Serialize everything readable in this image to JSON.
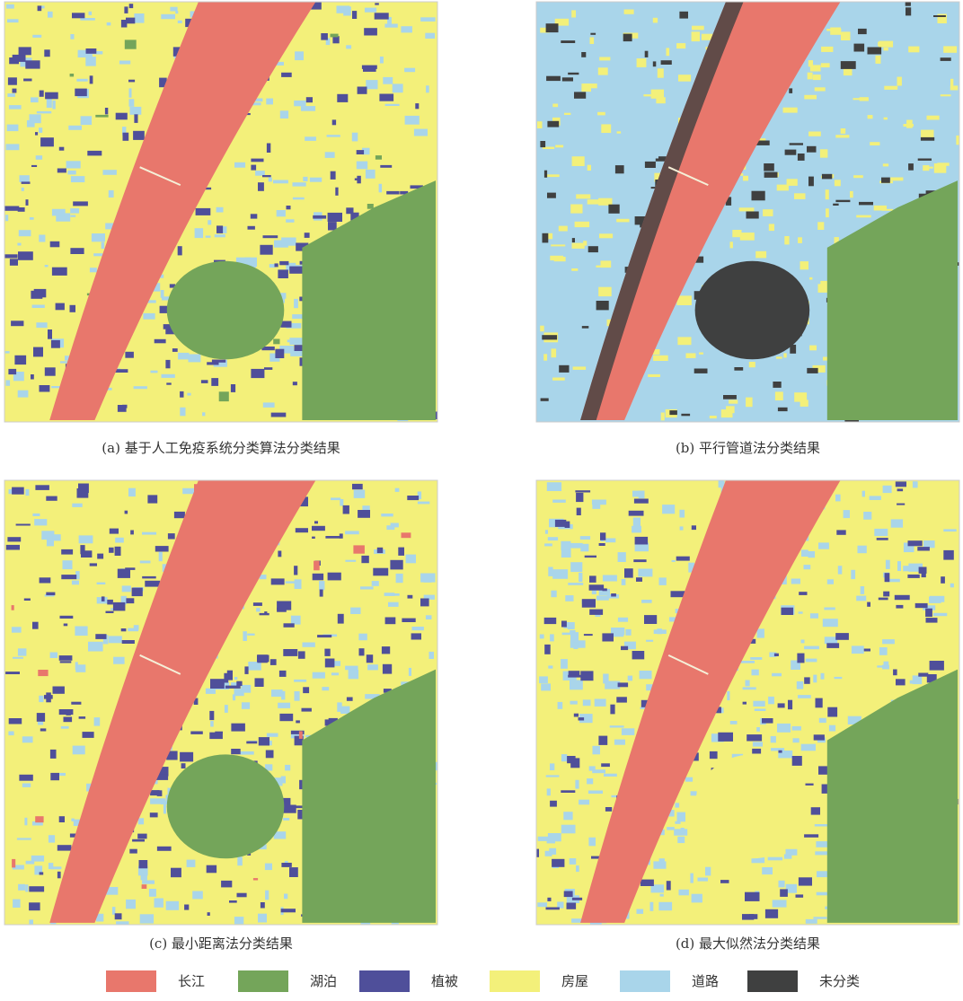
{
  "panels": [
    {
      "caption": "(a) 基于人工免疫系统分类算法分类结果"
    },
    {
      "caption": "(b) 平行管道法分类结果"
    },
    {
      "caption": "(c) 最小距离法分类结果"
    },
    {
      "caption": "(d) 最大似然法分类结果"
    }
  ],
  "legend": [
    {
      "label": "长江",
      "color": "#e8776c"
    },
    {
      "label": "湖泊",
      "color": "#74a55a"
    },
    {
      "label": "植被",
      "color": "#4f4f9a"
    },
    {
      "label": "房屋",
      "color": "#f3f07a"
    },
    {
      "label": "道路",
      "color": "#a9d5ea"
    },
    {
      "label": "未分类",
      "color": "#3f4040"
    }
  ]
}
